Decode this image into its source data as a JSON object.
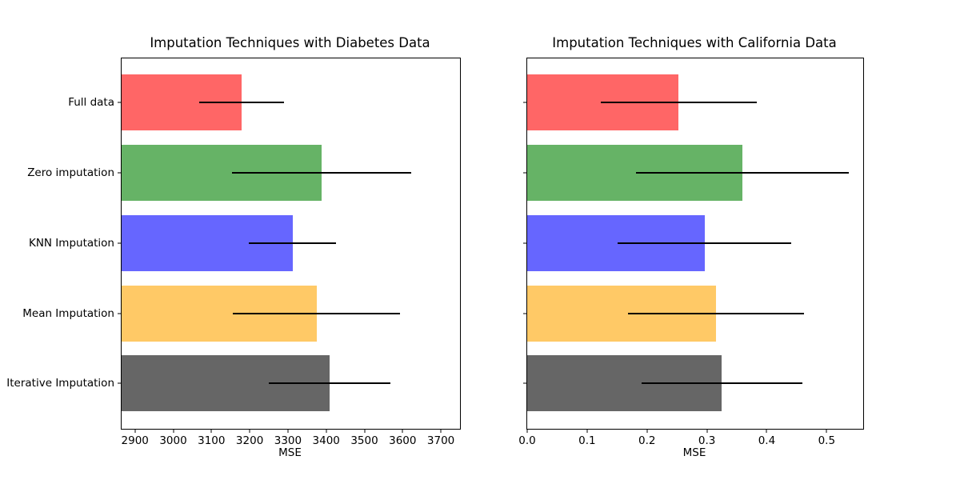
{
  "figure": {
    "background_color": "#ffffff",
    "axis_color": "#000000"
  },
  "chart_data": [
    {
      "type": "bar",
      "orientation": "horizontal",
      "title": "Imputation Techniques with Diabetes Data",
      "xlabel": "MSE",
      "categories": [
        "Full data",
        "Zero imputation",
        "KNN Imputation",
        "Mean Imputation",
        "Iterative Imputation"
      ],
      "values": [
        3178,
        3388,
        3312,
        3375,
        3409
      ],
      "errors": [
        111,
        234,
        114,
        219,
        158
      ],
      "bar_colors": [
        "#ff6666",
        "#66b366",
        "#6666ff",
        "#ffc966",
        "#666666"
      ],
      "error_bar_color": "#000000",
      "xlim": [
        2865,
        3750
      ],
      "xticks": [
        2900,
        3000,
        3100,
        3200,
        3300,
        3400,
        3500,
        3600,
        3700
      ],
      "xtick_labels": [
        "2900",
        "3000",
        "3100",
        "3200",
        "3300",
        "3400",
        "3500",
        "3600",
        "3700"
      ],
      "show_ytick_labels": true,
      "grid": false,
      "legend": "none"
    },
    {
      "type": "bar",
      "orientation": "horizontal",
      "title": "Imputation Techniques with California Data",
      "xlabel": "MSE",
      "categories": [
        "Full data",
        "Zero imputation",
        "KNN Imputation",
        "Mean Imputation",
        "Iterative Imputation"
      ],
      "values": [
        0.253,
        0.359,
        0.296,
        0.315,
        0.325
      ],
      "errors": [
        0.13,
        0.178,
        0.145,
        0.147,
        0.134
      ],
      "bar_colors": [
        "#ff6666",
        "#66b366",
        "#6666ff",
        "#ffc966",
        "#666666"
      ],
      "error_bar_color": "#000000",
      "xlim": [
        0,
        0.561
      ],
      "xticks": [
        0.0,
        0.1,
        0.2,
        0.3,
        0.4,
        0.5
      ],
      "xtick_labels": [
        "0.0",
        "0.1",
        "0.2",
        "0.3",
        "0.4",
        "0.5"
      ],
      "show_ytick_labels": false,
      "grid": false,
      "legend": "none"
    }
  ]
}
